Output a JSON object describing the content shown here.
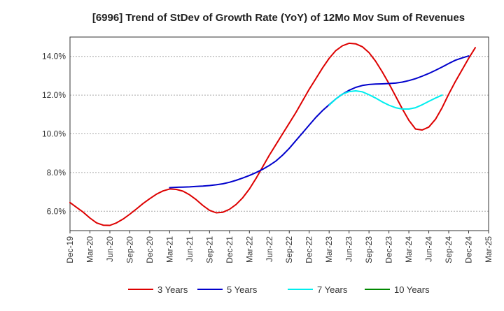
{
  "chart_data": {
    "type": "line",
    "title": "[6996]  Trend of StDev of Growth Rate (YoY) of 12Mo Mov Sum of Revenues",
    "xlabel": "",
    "ylabel": "",
    "x_labels": [
      "Dec-19",
      "Mar-20",
      "Jun-20",
      "Sep-20",
      "Dec-20",
      "Mar-21",
      "Jun-21",
      "Sep-21",
      "Dec-21",
      "Mar-22",
      "Jun-22",
      "Sep-22",
      "Dec-22",
      "Mar-23",
      "Jun-23",
      "Sep-23",
      "Dec-23",
      "Mar-24",
      "Jun-24",
      "Sep-24",
      "Dec-24",
      "Mar-25"
    ],
    "ylim": [
      5.0,
      15.0
    ],
    "y_ticks": [
      6.0,
      8.0,
      10.0,
      12.0,
      14.0
    ],
    "y_tick_labels": [
      "6.0%",
      "8.0%",
      "10.0%",
      "12.0%",
      "14.0%"
    ],
    "grid": true,
    "legend_position": "bottom",
    "series": [
      {
        "name": "3 Years",
        "color": "#dd0000",
        "start_index": 0,
        "values": [
          6.45,
          6.2,
          5.95,
          5.65,
          5.4,
          5.28,
          5.27,
          5.4,
          5.6,
          5.85,
          6.12,
          6.4,
          6.65,
          6.88,
          7.05,
          7.15,
          7.13,
          7.04,
          6.85,
          6.6,
          6.3,
          6.05,
          5.92,
          5.95,
          6.1,
          6.35,
          6.7,
          7.15,
          7.7,
          8.3,
          8.9,
          9.45,
          10.0,
          10.55,
          11.1,
          11.7,
          12.3,
          12.85,
          13.4,
          13.9,
          14.3,
          14.55,
          14.68,
          14.65,
          14.5,
          14.2,
          13.75,
          13.2,
          12.6,
          11.95,
          11.3,
          10.7,
          10.25,
          10.2,
          10.35,
          10.75,
          11.35,
          12.05,
          12.7,
          13.3,
          13.9,
          14.45
        ]
      },
      {
        "name": "5 Years",
        "color": "#0000cc",
        "start_index": 15,
        "values": [
          7.22,
          7.24,
          7.25,
          7.26,
          7.28,
          7.3,
          7.33,
          7.37,
          7.42,
          7.5,
          7.6,
          7.72,
          7.85,
          8.0,
          8.17,
          8.37,
          8.6,
          8.9,
          9.25,
          9.65,
          10.05,
          10.45,
          10.85,
          11.2,
          11.5,
          11.8,
          12.05,
          12.25,
          12.4,
          12.5,
          12.55,
          12.57,
          12.58,
          12.6,
          12.62,
          12.67,
          12.75,
          12.85,
          12.98,
          13.12,
          13.28,
          13.45,
          13.63,
          13.8,
          13.92,
          14.02
        ]
      },
      {
        "name": "7 Years",
        "color": "#00eeee",
        "start_index": 39,
        "values": [
          11.48,
          11.8,
          12.05,
          12.18,
          12.22,
          12.17,
          12.02,
          11.85,
          11.65,
          11.48,
          11.35,
          11.28,
          11.28,
          11.35,
          11.5,
          11.68,
          11.85,
          12.0
        ]
      },
      {
        "name": "10 Years",
        "color": "#008800",
        "start_index": 0,
        "values": []
      }
    ]
  }
}
